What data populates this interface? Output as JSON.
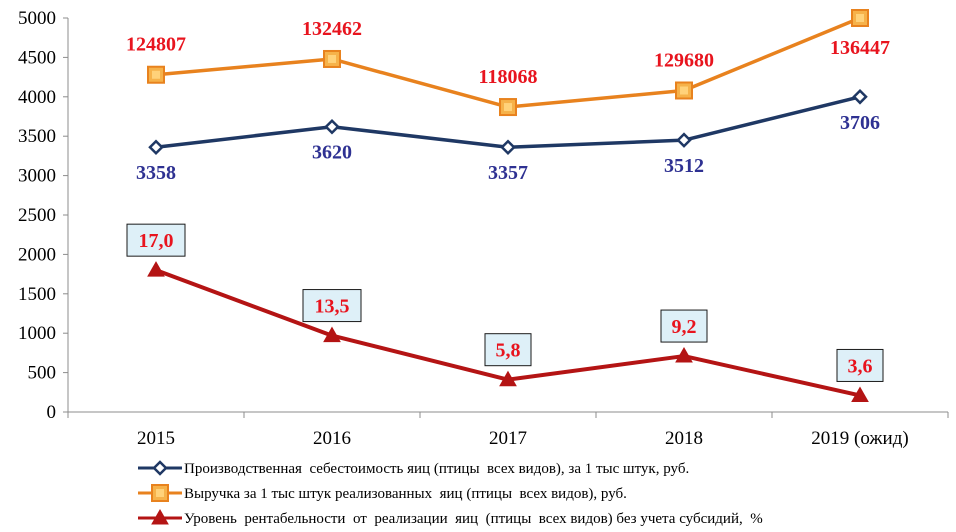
{
  "chart_data": {
    "type": "line",
    "categories": [
      "2015",
      "2016",
      "2017",
      "2018",
      "2019 (ожид)"
    ],
    "ylim": [
      0,
      5000
    ],
    "y_ticks": [
      0,
      500,
      1000,
      1500,
      2000,
      2500,
      3000,
      3500,
      4000,
      4500,
      5000
    ],
    "grid": false,
    "legend_position": "bottom",
    "series": [
      {
        "name": "Производственная  себестоимость яиц (птицы  всех видов), за 1 тыс штук, руб.",
        "color": "#1f3864",
        "marker": "diamond",
        "values": [
          3358,
          3620,
          3357,
          3512,
          3706
        ],
        "plot_values": [
          3360,
          3620,
          3360,
          3450,
          4000
        ],
        "labels": [
          "3358",
          "3620",
          "3357",
          "3512",
          "3706"
        ],
        "label_color": "#2e3192",
        "label_position": "below"
      },
      {
        "name": "Выручка за 1 тыс штук реализованных  яиц (птицы  всех видов), руб.",
        "color": "#e8821e",
        "marker": "square",
        "values": [
          124807,
          132462,
          118068,
          129680,
          136447
        ],
        "plot_values": [
          4280,
          4480,
          3870,
          4080,
          5000
        ],
        "labels": [
          "124807",
          "132462",
          "118068",
          "129680",
          "136447"
        ],
        "label_color": "#e8141e",
        "label_position": "above"
      },
      {
        "name": "Уровень  рентабельности  от  реализации  яиц  (птицы  всех видов) без учета субсидий,  %",
        "color": "#b41414",
        "marker": "triangle",
        "values": [
          17.0,
          13.5,
          5.8,
          9.2,
          3.6
        ],
        "plot_values": [
          1800,
          970,
          410,
          710,
          210
        ],
        "labels": [
          "17,0",
          "13,5",
          "5,8",
          "9,2",
          "3,6"
        ],
        "label_color": "#e8141e",
        "label_position": "box-above"
      }
    ]
  }
}
